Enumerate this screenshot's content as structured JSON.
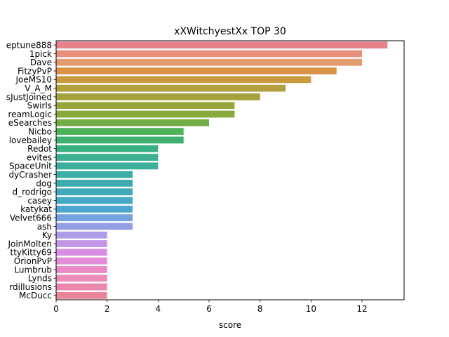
{
  "chart_data": {
    "type": "bar",
    "orientation": "horizontal",
    "title": "xXWitchyestXx TOP 30",
    "xlabel": "score",
    "ylabel": "",
    "xlim": [
      0,
      13.65
    ],
    "xticks": [
      0,
      2,
      4,
      6,
      8,
      10,
      12
    ],
    "grid": false,
    "categories": [
      "eptune888",
      "1pick",
      "Dave",
      "FitzyPvP",
      "JoeMS10",
      "V_A_M",
      "sJustJoined",
      "Swirls",
      "reamLogic",
      "eSearches",
      "Nicbo",
      "lovebailey",
      "Redot",
      "evites",
      "SpaceUnit",
      "dyCrasher",
      "dog",
      "d_rodrigo",
      "casey",
      "katykat",
      "Velvet666",
      "ash",
      "Ky",
      "JoinMolten",
      "ttyKitty69",
      "OrionPvP",
      "Lumbrub",
      "Lynds",
      "rdillusions",
      "McDucc"
    ],
    "values": [
      13,
      12,
      12,
      11,
      10,
      9,
      8,
      7,
      7,
      6,
      5,
      5,
      4,
      4,
      4,
      3,
      3,
      3,
      3,
      3,
      3,
      3,
      2,
      2,
      2,
      2,
      2,
      2,
      2,
      2
    ],
    "colors": [
      "#e8828a",
      "#e88f7e",
      "#e59b70",
      "#db9347",
      "#c99a3f",
      "#b39f3d",
      "#a5a13c",
      "#97a63b",
      "#88aa3b",
      "#73ad45",
      "#4fb15a",
      "#3eb070",
      "#3ab181",
      "#3cb090",
      "#3cae9c",
      "#3eada6",
      "#3eabb0",
      "#40aaba",
      "#45a8c4",
      "#51a6d1",
      "#73a2de",
      "#969fe4",
      "#ae9ce6",
      "#c296e5",
      "#d68fe2",
      "#e48cd8",
      "#ea8ac9",
      "#ed8bbb",
      "#eb87ac",
      "#e9869c"
    ]
  }
}
